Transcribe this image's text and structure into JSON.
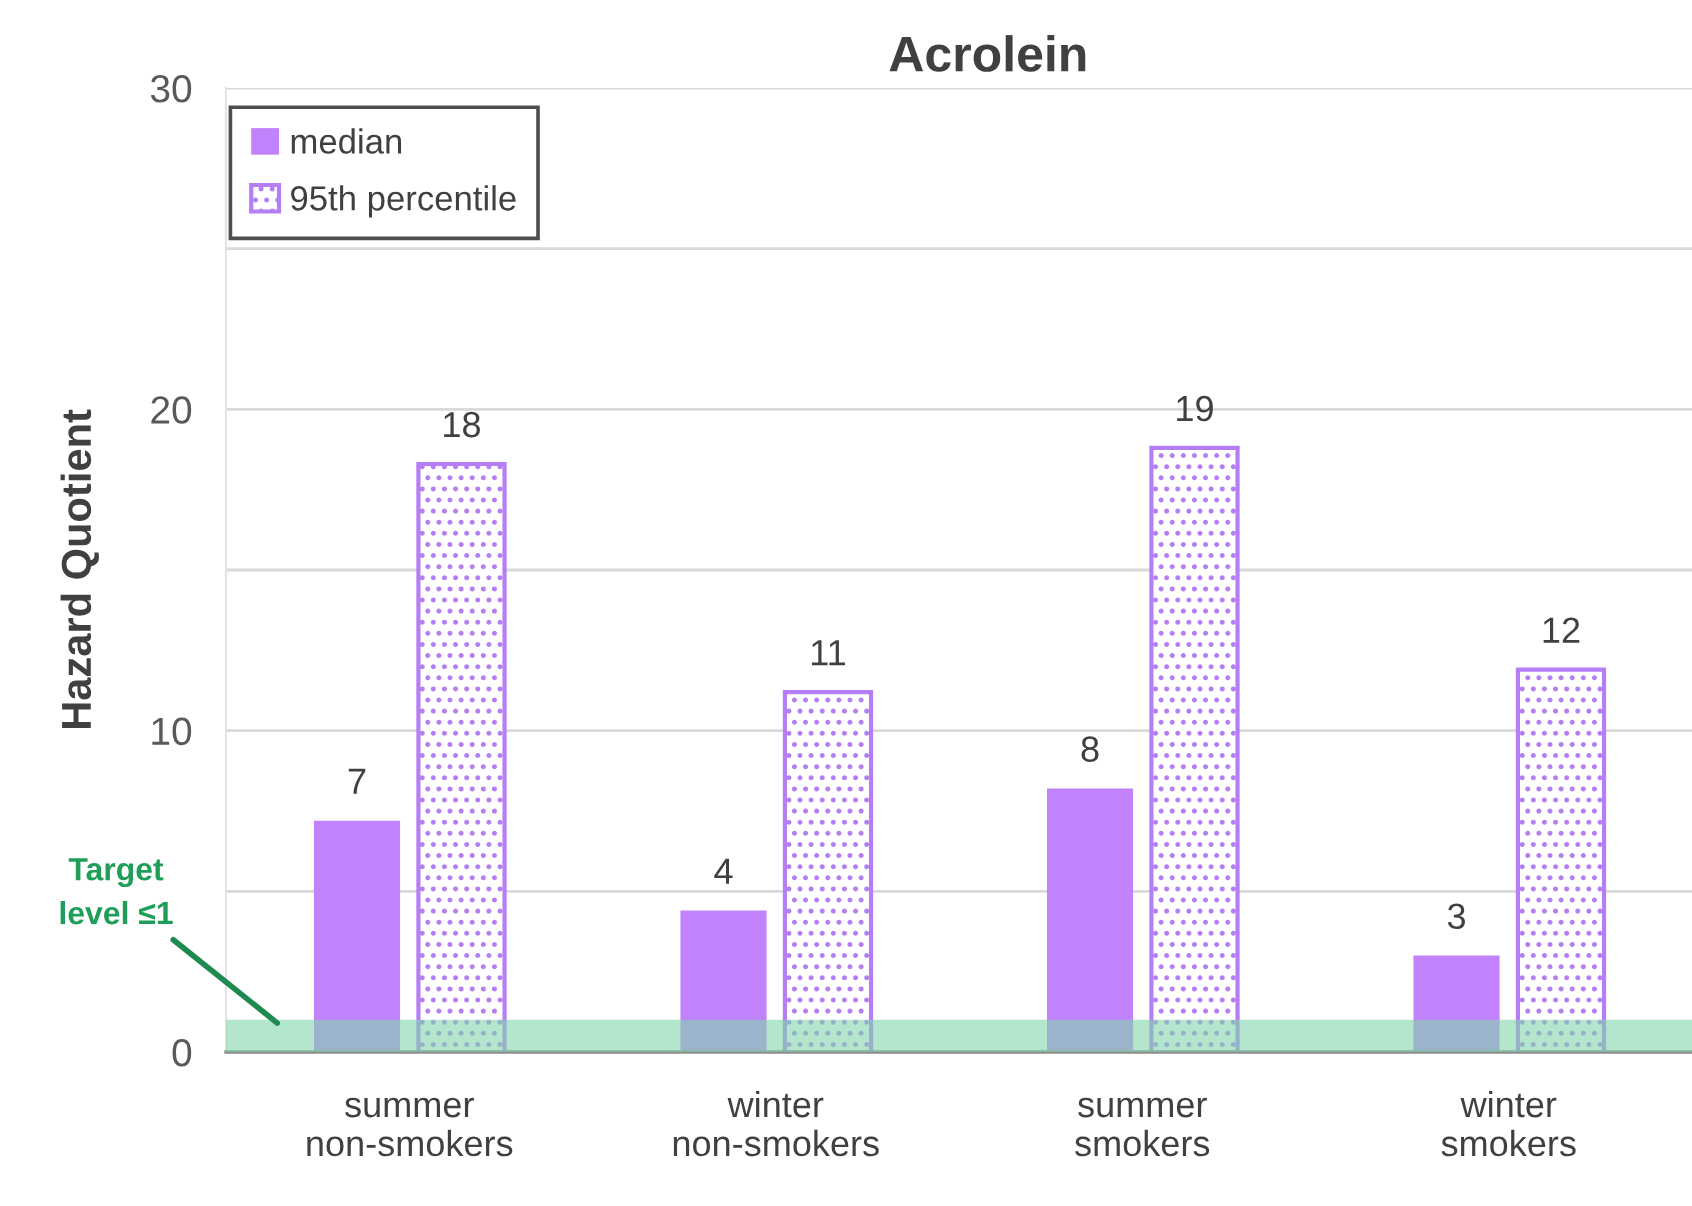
{
  "chart_data": {
    "type": "bar",
    "title": "Acrolein",
    "ylabel": "Hazard Quotient",
    "categories": [
      "summer\nnon-smokers",
      "winter\nnon-smokers",
      "summer\nsmokers",
      "winter\nsmokers"
    ],
    "series": [
      {
        "name": "median",
        "color": "#c182fb",
        "values": [
          7.2,
          4.4,
          8.2,
          3.0
        ],
        "value_labels": [
          "7",
          "4",
          "8",
          "3"
        ]
      },
      {
        "name": "95th percentile",
        "color": "#b57ef5",
        "values": [
          18.3,
          11.2,
          18.8,
          11.9
        ],
        "value_labels": [
          "18",
          "11",
          "19",
          "12"
        ]
      }
    ],
    "ylim": [
      0,
      30
    ],
    "yticks": [
      0,
      {
        "value": 5,
        "label": null
      },
      10,
      {
        "value": 15,
        "label": null
      },
      20,
      {
        "value": 25,
        "label": null
      },
      30
    ],
    "grid": "y",
    "legend": "top left",
    "bands": [
      {
        "axis": "y",
        "from": 0,
        "to": 1,
        "label": "Target\nlevel ≤1",
        "color": "#82d5ac"
      }
    ]
  }
}
